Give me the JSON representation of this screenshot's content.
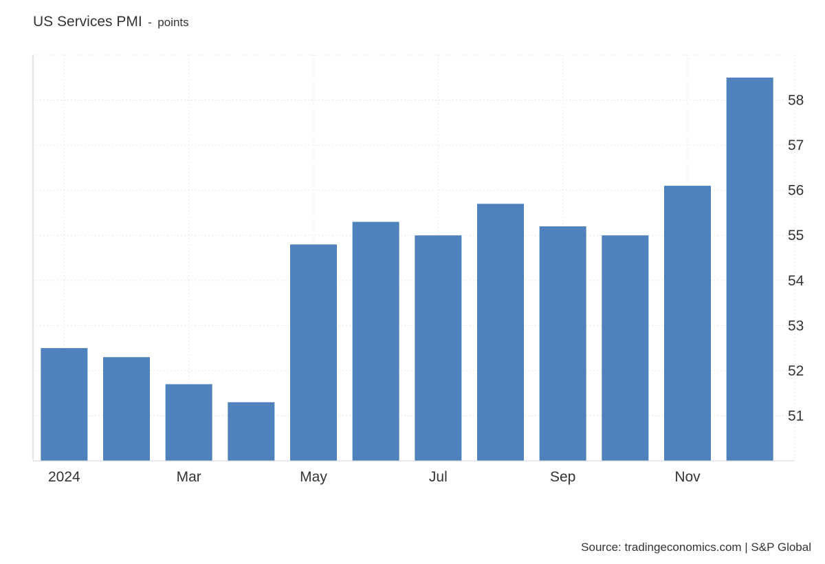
{
  "header": {
    "title": "US Services PMI",
    "separator": "-",
    "unit": "points"
  },
  "footer": {
    "source": "Source: tradingeconomics.com | S&P Global"
  },
  "chart_data": {
    "type": "bar",
    "title": "US Services PMI",
    "unit": "points",
    "categories": [
      "Jan 2024",
      "Feb 2024",
      "Mar 2024",
      "Apr 2024",
      "May 2024",
      "Jun 2024",
      "Jul 2024",
      "Aug 2024",
      "Sep 2024",
      "Oct 2024",
      "Nov 2024",
      "Dec 2024"
    ],
    "x_tick_labels": [
      "2024",
      "",
      "Mar",
      "",
      "May",
      "",
      "Jul",
      "",
      "Sep",
      "",
      "Nov",
      ""
    ],
    "series": [
      {
        "values": [
          52.5,
          52.3,
          51.7,
          51.3,
          54.8,
          55.3,
          55.0,
          55.7,
          55.2,
          55.0,
          56.1,
          58.5
        ]
      }
    ],
    "ylim": [
      50.0,
      59.0
    ],
    "yticks": [
      51,
      52,
      53,
      54,
      55,
      56,
      57,
      58
    ],
    "y_axis_position": "right",
    "grid": true,
    "bar_color": "#4f81bd",
    "grid_color": "#e6e6e6"
  }
}
